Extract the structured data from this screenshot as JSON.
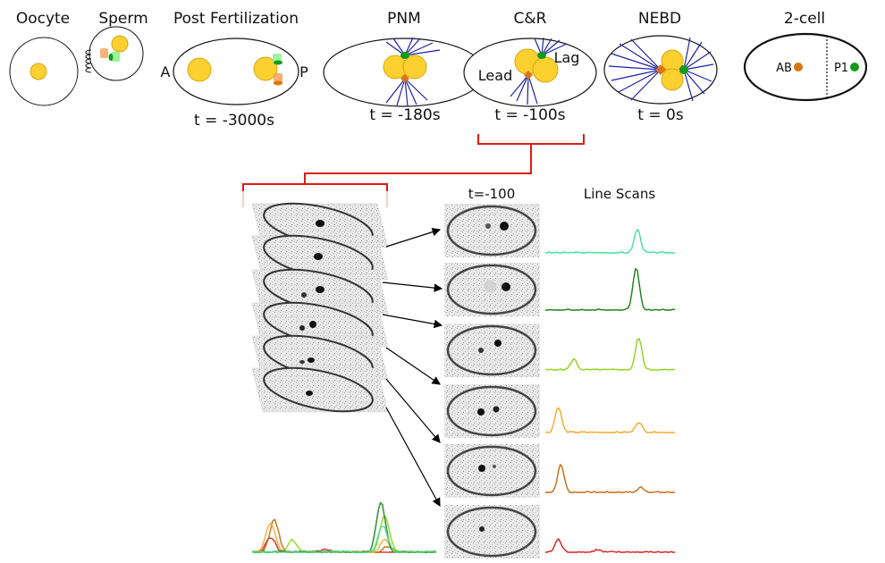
{
  "stages": [
    {
      "title": "Oocyte",
      "time": ""
    },
    {
      "title": "Sperm",
      "time": ""
    },
    {
      "title": "Post Fertilization",
      "time": "t = -3000s"
    },
    {
      "title": "PNM",
      "time": "t = -180s"
    },
    {
      "title": "C&R",
      "time": "t = -100s"
    },
    {
      "title": "NEBD",
      "time": "t = 0s"
    },
    {
      "title": "2-cell",
      "time": ""
    }
  ],
  "labels": {
    "anterior": "A",
    "posterior": "P",
    "lead": "Lead",
    "lag": "Lag",
    "ab_cell": "AB",
    "p1_cell": "P1",
    "snapshot_time": "t=-100",
    "line_scans": "Line Scans"
  },
  "colors": {
    "pronucleus": "#fbd02f",
    "pronucleus_edge": "#d9a514",
    "centrosome_orange": "#d97510",
    "centrosome_green": "#119a1b",
    "microtubule": "#1c22a6",
    "bracket": "#e01818"
  },
  "line_scans": [
    {
      "color": "#3fe0a0",
      "peaks": [
        [
          0.71,
          0.55
        ]
      ]
    },
    {
      "color": "#1a7f16",
      "peaks": [
        [
          0.7,
          1.0
        ]
      ]
    },
    {
      "color": "#8cd616",
      "peaks": [
        [
          0.72,
          0.75
        ],
        [
          0.22,
          0.25
        ]
      ]
    },
    {
      "color": "#f1a92b",
      "peaks": [
        [
          0.1,
          0.6
        ],
        [
          0.72,
          0.25
        ]
      ]
    },
    {
      "color": "#c26a10",
      "peaks": [
        [
          0.12,
          0.65
        ],
        [
          0.74,
          0.12
        ]
      ]
    },
    {
      "color": "#d61e1e",
      "peaks": [
        [
          0.1,
          0.3
        ],
        [
          0.4,
          0.06
        ]
      ]
    }
  ],
  "summary_plot_order": [
    5,
    4,
    3,
    2,
    1,
    0
  ]
}
